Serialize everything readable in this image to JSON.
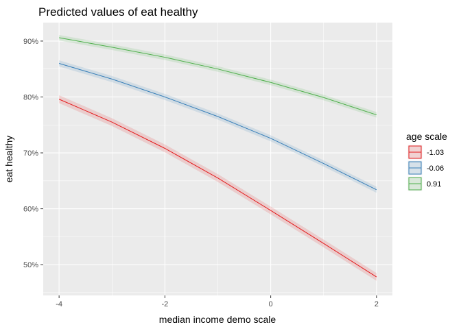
{
  "chart_data": {
    "type": "line",
    "title": "Predicted values of eat healthy",
    "xlabel": "median income demo scale",
    "ylabel": "eat healthy",
    "xlim": [
      -4.3,
      2.3
    ],
    "ylim": [
      44.5,
      93.3
    ],
    "x_ticks": [
      -4,
      -2,
      0,
      2
    ],
    "x_tick_labels": [
      "-4",
      "-2",
      "0",
      "2"
    ],
    "y_ticks": [
      50,
      60,
      70,
      80,
      90
    ],
    "y_tick_labels": [
      "50%",
      "60%",
      "70%",
      "80%",
      "90%"
    ],
    "grid": true,
    "confidence_bands": true,
    "legend_title": "age scale",
    "legend_position": "right",
    "x": [
      -4,
      -3,
      -2,
      -1,
      0,
      1,
      2
    ],
    "series": [
      {
        "name": "-1.03",
        "color": "#e41a1c",
        "values": [
          79.6,
          75.5,
          70.8,
          65.5,
          59.7,
          53.8,
          47.8
        ],
        "band_halfwidth": 0.7
      },
      {
        "name": "-0.06",
        "color": "#377eb8",
        "values": [
          86.0,
          83.2,
          80.0,
          76.5,
          72.6,
          68.1,
          63.4
        ],
        "band_halfwidth": 0.55
      },
      {
        "name": "0.91",
        "color": "#4daf4a",
        "values": [
          90.6,
          88.9,
          87.1,
          85.0,
          82.6,
          79.9,
          76.8
        ],
        "band_halfwidth": 0.5
      }
    ]
  }
}
